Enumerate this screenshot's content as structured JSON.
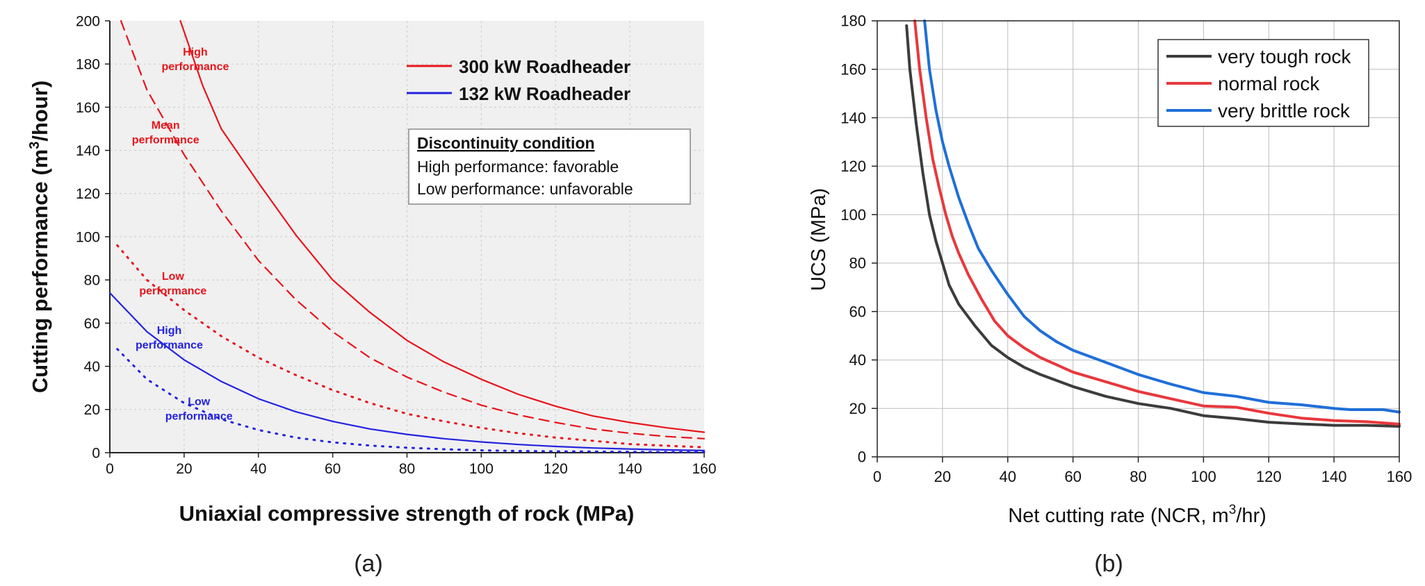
{
  "panels": [
    {
      "id": "a",
      "caption": "(a)",
      "chart_data": {
        "type": "line",
        "xlabel": "Uniaxial compressive strength of rock (MPa)",
        "ylabel_pre": "Cutting performance (m",
        "ylabel_sup": "3",
        "ylabel_post": "/hour)",
        "xlim": [
          0,
          160
        ],
        "ylim": [
          0,
          200
        ],
        "xticks": [
          0,
          20,
          40,
          60,
          80,
          100,
          120,
          140,
          160
        ],
        "yticks": [
          0,
          20,
          40,
          60,
          80,
          100,
          120,
          140,
          160,
          180,
          200
        ],
        "grid": true,
        "legend_position": "top-right",
        "legend": [
          {
            "label": "300 kW Roadheader",
            "color": "#e8141b"
          },
          {
            "label": "132 kW Roadheader",
            "color": "#2323e0"
          }
        ],
        "condition_box": {
          "title": "Discontinuity condition",
          "lines": [
            "High performance: favorable",
            "Low performance: unfavorable"
          ]
        },
        "series": [
          {
            "name": "300 kW Roadheader",
            "color": "#e8141b",
            "dash": "solid",
            "x": [
              19,
              25,
              30,
              40,
              50,
              60,
              70,
              80,
              90,
              100,
              110,
              120,
              130,
              140,
              150,
              160
            ],
            "y": [
              200,
              170,
              150,
              125,
              101,
              80,
              65,
              52,
              42,
              34,
              27,
              21.5,
              17,
              14,
              11.5,
              9.5
            ]
          },
          {
            "name": "300 kW Roadheader",
            "color": "#e8141b",
            "dash": "dash",
            "x": [
              3,
              10,
              20,
              30,
              40,
              50,
              60,
              70,
              80,
              90,
              100,
              110,
              120,
              130,
              140,
              150,
              160
            ],
            "y": [
              200,
              168,
              138,
              112,
              89,
              71,
              56,
              44,
              35,
              28,
              22,
              17.5,
              14,
              11,
              9,
              7.5,
              6.5
            ]
          },
          {
            "name": "300 kW Roadheader",
            "color": "#e8141b",
            "dash": "dot",
            "x": [
              2,
              10,
              20,
              30,
              40,
              50,
              60,
              70,
              80,
              90,
              100,
              110,
              120,
              130,
              140,
              150,
              160
            ],
            "y": [
              96,
              80,
              66,
              54,
              44,
              36,
              29,
              23,
              18,
              14.5,
              11.5,
              9,
              7,
              5.5,
              4,
              3.2,
              2.5
            ]
          },
          {
            "name": "132 kW Roadheader",
            "color": "#2323e0",
            "dash": "solid",
            "x": [
              0,
              10,
              20,
              30,
              40,
              50,
              60,
              70,
              80,
              90,
              100,
              110,
              120,
              130,
              140,
              150,
              160
            ],
            "y": [
              74,
              56,
              43,
              33,
              25,
              19,
              14.5,
              11,
              8.5,
              6.5,
              5,
              3.8,
              2.9,
              2.2,
              1.7,
              1.3,
              1
            ]
          },
          {
            "name": "132 kW Roadheader",
            "color": "#2323e0",
            "dash": "dot",
            "x": [
              2,
              10,
              20,
              30,
              40,
              50,
              60,
              70,
              80,
              90,
              100,
              110,
              120,
              130,
              140,
              150,
              160
            ],
            "y": [
              48,
              34,
              23,
              15.5,
              10.5,
              7,
              4.8,
              3.3,
              2.3,
              1.6,
              1.1,
              0.8,
              0.6,
              0.5,
              0.4,
              0.3,
              0.3
            ]
          }
        ],
        "annotations": [
          {
            "lines": [
              "High",
              "performance"
            ],
            "color": "#e8141b",
            "x": 23,
            "y": 184
          },
          {
            "lines": [
              "Mean",
              "performance"
            ],
            "color": "#e8141b",
            "x": 15,
            "y": 150
          },
          {
            "lines": [
              "Low",
              "performance"
            ],
            "color": "#e8141b",
            "x": 17,
            "y": 80
          },
          {
            "lines": [
              "High",
              "performance"
            ],
            "color": "#2323e0",
            "x": 16,
            "y": 55
          },
          {
            "lines": [
              "Low",
              "performance"
            ],
            "color": "#2323e0",
            "x": 24,
            "y": 22
          }
        ]
      }
    },
    {
      "id": "b",
      "caption": "(b)",
      "chart_data": {
        "type": "line",
        "xlabel_pre": "Net cutting rate (NCR, m",
        "xlabel_sup": "3",
        "xlabel_post": "/hr)",
        "ylabel": "UCS (MPa)",
        "xlim": [
          0,
          160
        ],
        "ylim": [
          0,
          180
        ],
        "xticks": [
          0,
          20,
          40,
          60,
          80,
          100,
          120,
          140,
          160
        ],
        "yticks": [
          0,
          20,
          40,
          60,
          80,
          100,
          120,
          140,
          160,
          180
        ],
        "grid": true,
        "legend_position": "top-right",
        "series": [
          {
            "name": "very tough rock",
            "color": "#3c3c3c",
            "x": [
              9,
              10,
              12,
              14,
              16,
              18,
              20,
              22,
              25,
              30,
              35,
              40,
              45,
              50,
              60,
              70,
              80,
              90,
              100,
              110,
              120,
              130,
              140,
              150,
              160
            ],
            "y": [
              178,
              160,
              137,
              117,
              100,
              89,
              80,
              71,
              63,
              54,
              46,
              41,
              37,
              34,
              29,
              25,
              22,
              20,
              17,
              15.8,
              14.3,
              13.6,
              13,
              13,
              12.6
            ]
          },
          {
            "name": "normal rock",
            "color": "#e8383d",
            "x": [
              11.5,
              13,
              15,
              17,
              19,
              21,
              23,
              25,
              28,
              32,
              36,
              40,
              45,
              50,
              60,
              70,
              80,
              90,
              100,
              110,
              120,
              130,
              140,
              150,
              160
            ],
            "y": [
              180,
              160,
              140,
              123,
              111,
              100,
              91,
              84,
              75,
              65,
              56,
              50,
              45,
              41,
              35,
              31,
              27,
              24,
              21,
              20.5,
              18,
              16,
              15,
              14.5,
              13.5
            ]
          },
          {
            "name": "very brittle rock",
            "color": "#1f6fd8",
            "x": [
              14.5,
              16,
              18,
              20,
              22,
              25,
              28,
              31,
              35,
              40,
              45,
              50,
              55,
              60,
              70,
              80,
              90,
              100,
              110,
              120,
              130,
              140,
              145,
              150,
              155,
              160
            ],
            "y": [
              180,
              160,
              143,
              130,
              120,
              107,
              96,
              86,
              77,
              67,
              58,
              52,
              47.5,
              44,
              39,
              34,
              30,
              26.5,
              25,
              22.5,
              21.5,
              20,
              19.5,
              19.5,
              19.5,
              18.5
            ]
          }
        ]
      }
    }
  ]
}
